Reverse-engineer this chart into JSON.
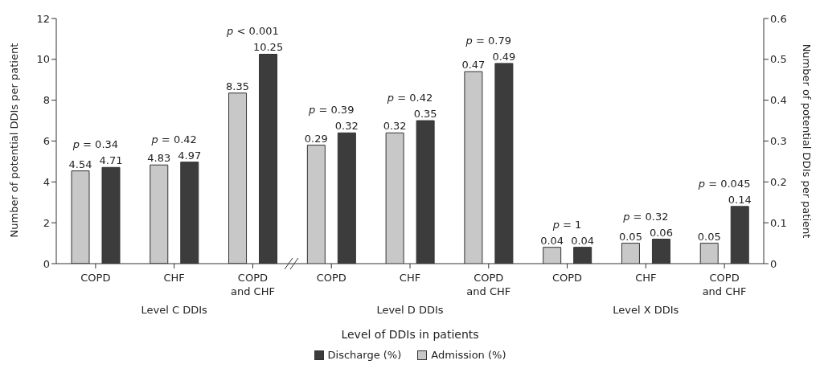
{
  "chart_data": {
    "type": "bar",
    "xlabel": "Level of DDIs in patients",
    "ylabel": "Number of potential DDIs per patient",
    "y2label": "Number of potential DDIs per patient",
    "categories": [
      "COPD",
      "CHF",
      "COPD and CHF",
      "COPD",
      "CHF",
      "COPD and CHF",
      "COPD",
      "CHF",
      "COPD and CHF"
    ],
    "series": [
      {
        "name": "Admission (%)",
        "color": "#c8c8c8",
        "values": [
          4.54,
          4.83,
          8.35,
          null,
          null,
          null,
          null,
          null,
          null
        ]
      },
      {
        "name": "Discharge (%)",
        "color": "#3c3c3c",
        "values": [
          4.71,
          4.97,
          10.25,
          null,
          null,
          null,
          null,
          null,
          null
        ]
      },
      {
        "color": "#c8c8c8",
        "axis": "y2",
        "values": [
          null,
          null,
          null,
          0.29,
          0.32,
          0.47,
          0.04,
          0.05,
          0.05
        ]
      },
      {
        "color": "#3c3c3c",
        "axis": "y2",
        "values": [
          null,
          null,
          null,
          0.32,
          0.35,
          0.49,
          0.04,
          0.06,
          0.14
        ]
      }
    ],
    "ylim": [
      0,
      12
    ],
    "yticks": [
      0,
      2,
      4,
      6,
      8,
      10,
      12
    ],
    "y2lim": [
      0,
      0.6
    ],
    "y2ticks": [
      0,
      0.1,
      0.2,
      0.3,
      0.4,
      0.5,
      0.6
    ],
    "data_labels": true,
    "legend": "bottom",
    "annotations": [
      "p = 0.34",
      "p = 0.42",
      "p < 0.001",
      "p = 0.39",
      "p = 0.42",
      "p = 0.79",
      "p = 1",
      "p = 0.32",
      "p = 0.045",
      "Level C DDIs",
      "Level D DDIs",
      "Level X DDIs"
    ]
  }
}
